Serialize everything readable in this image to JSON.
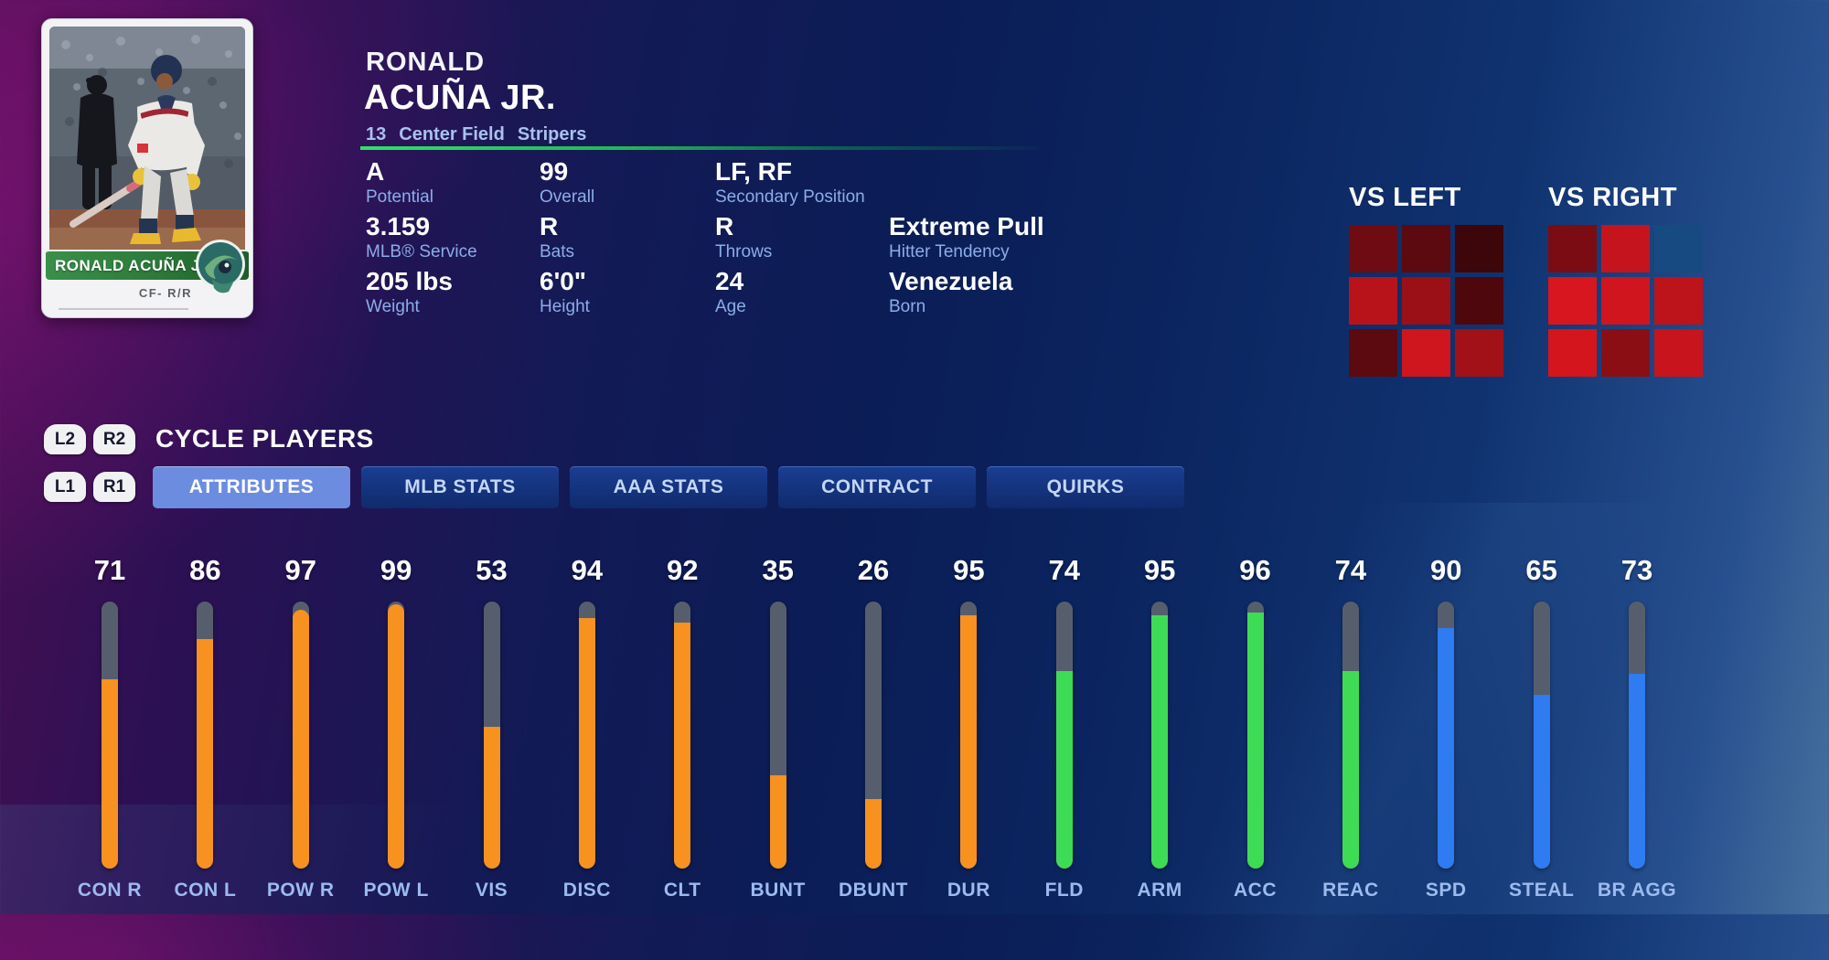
{
  "player": {
    "first_name": "RONALD",
    "last_name": "ACUÑA JR.",
    "meta": {
      "number": "13",
      "position": "Center Field",
      "team": "Stripers"
    },
    "card": {
      "name": "RONALD ACUÑA JR.",
      "position_hand": "CF- R/R"
    }
  },
  "bio": {
    "items": [
      {
        "value": "A",
        "label": "Potential"
      },
      {
        "value": "99",
        "label": "Overall"
      },
      {
        "value": "LF, RF",
        "label": "Secondary Position"
      },
      {
        "value": "3.159",
        "label": "MLB® Service"
      },
      {
        "value": "R",
        "label": "Bats"
      },
      {
        "value": "R",
        "label": "Throws"
      },
      {
        "value": "Extreme Pull",
        "label": "Hitter Tendency"
      },
      {
        "value": "205 lbs",
        "label": "Weight"
      },
      {
        "value": "6'0\"",
        "label": "Height"
      },
      {
        "value": "24",
        "label": "Age"
      },
      {
        "value": "Venezuela",
        "label": "Born"
      }
    ]
  },
  "matchup": {
    "vs_left": {
      "title": "VS LEFT",
      "cells": [
        "#6f0b12",
        "#5c0910",
        "#3c060b",
        "#b8131b",
        "#9a1016",
        "#4f070e",
        "#5c0910",
        "#cf151e",
        "#a11117"
      ]
    },
    "vs_right": {
      "title": "VS RIGHT",
      "cells": [
        "#7c0c13",
        "#c5141d",
        "#174a80",
        "#d8161f",
        "#d0151e",
        "#bd131b",
        "#d4151e",
        "#8c0e15",
        "#c7141d"
      ]
    }
  },
  "controls": {
    "l2": "L2",
    "r2": "R2",
    "l1": "L1",
    "r1": "R1",
    "cycle_label": "CYCLE PLAYERS"
  },
  "tabs": [
    {
      "label": "ATTRIBUTES",
      "active": true
    },
    {
      "label": "MLB STATS",
      "active": false
    },
    {
      "label": "AAA STATS",
      "active": false
    },
    {
      "label": "CONTRACT",
      "active": false
    },
    {
      "label": "QUIRKS",
      "active": false
    }
  ],
  "attributes": [
    {
      "label": "CON R",
      "value": 71,
      "color": "orange"
    },
    {
      "label": "CON L",
      "value": 86,
      "color": "orange"
    },
    {
      "label": "POW R",
      "value": 97,
      "color": "orange"
    },
    {
      "label": "POW L",
      "value": 99,
      "color": "orange"
    },
    {
      "label": "VIS",
      "value": 53,
      "color": "orange"
    },
    {
      "label": "DISC",
      "value": 94,
      "color": "orange"
    },
    {
      "label": "CLT",
      "value": 92,
      "color": "orange"
    },
    {
      "label": "BUNT",
      "value": 35,
      "color": "orange"
    },
    {
      "label": "DBUNT",
      "value": 26,
      "color": "orange"
    },
    {
      "label": "DUR",
      "value": 95,
      "color": "orange"
    },
    {
      "label": "FLD",
      "value": 74,
      "color": "green"
    },
    {
      "label": "ARM",
      "value": 95,
      "color": "green"
    },
    {
      "label": "ACC",
      "value": 96,
      "color": "green"
    },
    {
      "label": "REAC",
      "value": 74,
      "color": "green"
    },
    {
      "label": "SPD",
      "value": 90,
      "color": "blue"
    },
    {
      "label": "STEAL",
      "value": 65,
      "color": "blue"
    },
    {
      "label": "BR AGG",
      "value": 73,
      "color": "blue"
    }
  ],
  "colors": {
    "orange": "#f79120",
    "green": "#3edc55",
    "blue": "#2e7bf2",
    "bar_track": "#565e6e",
    "divider_green": "#2fe06c",
    "active_tab": "#6c8ce0"
  }
}
